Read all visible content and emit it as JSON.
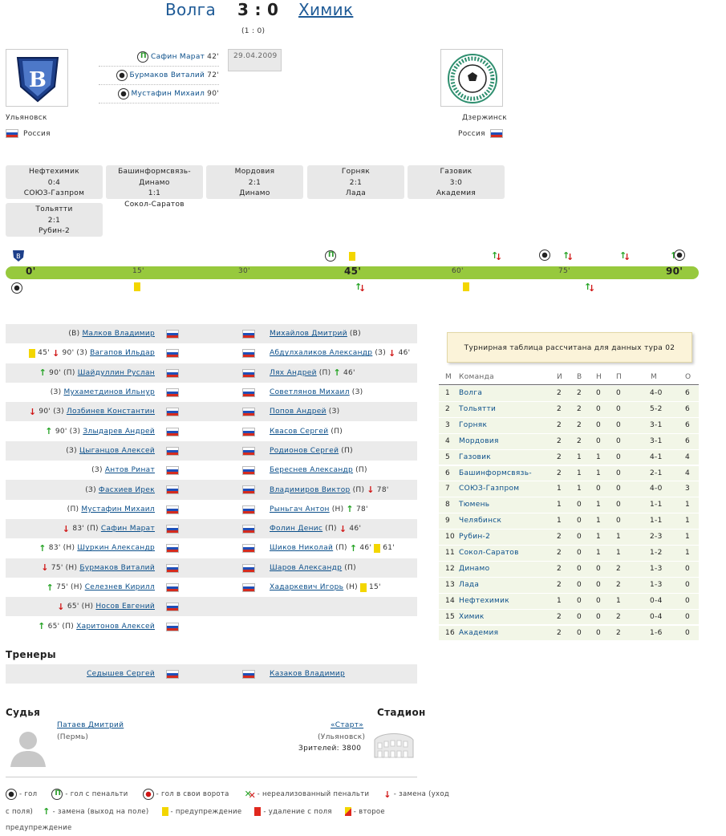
{
  "match": {
    "home_team": "Волга",
    "away_team": "Химик",
    "score": "3 : 0",
    "halftime": "(1 : 0)",
    "date": "29.04.2009",
    "home_city": "Ульяновск",
    "home_country": "Россия",
    "away_city": "Дзержинск",
    "away_country": "Россия"
  },
  "goals": [
    {
      "type": "penalty",
      "player": "Сафин Марат",
      "minute": "42'"
    },
    {
      "type": "goal",
      "player": "Бурмаков Виталий",
      "minute": "72'"
    },
    {
      "type": "goal",
      "player": "Мустафин Михаил",
      "minute": "90'"
    }
  ],
  "other_matches": [
    {
      "home": "Нефтехимик",
      "score": "0:4",
      "away": "СОЮЗ-Газпром"
    },
    {
      "home": "Башинформсвязь-Динамо",
      "score": "1:1",
      "away": "Сокол-Саратов"
    },
    {
      "home": "Мордовия",
      "score": "2:1",
      "away": "Динамо"
    },
    {
      "home": "Горняк",
      "score": "2:1",
      "away": "Лада"
    },
    {
      "home": "Газовик",
      "score": "3:0",
      "away": "Академия"
    },
    {
      "home": "Тольятти",
      "score": "2:1",
      "away": "Рубин-2"
    }
  ],
  "timeline": {
    "labels": [
      "0'",
      "15'",
      "30'",
      "45'",
      "60'",
      "75'",
      "90'"
    ]
  },
  "lineup_home": [
    {
      "pre": "(В)",
      "name": "Малков Владимир",
      "events": []
    },
    {
      "pre": "(З)",
      "name": "Вагапов Ильдар",
      "events": [
        "yc",
        "45'",
        "dn",
        "90'"
      ]
    },
    {
      "pre": "(П)",
      "name": "Шайдуллин Руслан",
      "events": [
        "up",
        "90'"
      ]
    },
    {
      "pre": "(З)",
      "name": "Мухаметдинов Ильнур",
      "events": []
    },
    {
      "pre": "(З)",
      "name": "Лозбинев Константин",
      "events": [
        "dn",
        "90'"
      ]
    },
    {
      "pre": "(З)",
      "name": "Злыдарев Андрей",
      "events": [
        "up",
        "90'"
      ]
    },
    {
      "pre": "(З)",
      "name": "Цыганцов Алексей",
      "events": []
    },
    {
      "pre": "(З)",
      "name": "Антов Ринат",
      "events": []
    },
    {
      "pre": "(З)",
      "name": "Фасхиев Ирек",
      "events": []
    },
    {
      "pre": "(П)",
      "name": "Мустафин Михаил",
      "events": []
    },
    {
      "pre": "(П)",
      "name": "Сафин Марат",
      "events": [
        "dn",
        "83'"
      ]
    },
    {
      "pre": "(Н)",
      "name": "Шуркин Александр",
      "events": [
        "up",
        "83'"
      ]
    },
    {
      "pre": "(Н)",
      "name": "Бурмаков Виталий",
      "events": [
        "dn",
        "75'"
      ]
    },
    {
      "pre": "(Н)",
      "name": "Селезнев Кирилл",
      "events": [
        "up",
        "75'"
      ]
    },
    {
      "pre": "(Н)",
      "name": "Носов Евгений",
      "events": [
        "dn",
        "65'"
      ]
    },
    {
      "pre": "(П)",
      "name": "Харитонов Алексей",
      "events": [
        "up",
        "65'"
      ]
    }
  ],
  "lineup_away": [
    {
      "name": "Михайлов Дмитрий",
      "post": "(В)",
      "events": []
    },
    {
      "name": "Абдулхаликов Александр",
      "post": "(З)",
      "events": [
        "dn",
        "46'"
      ]
    },
    {
      "name": "Лях Андрей",
      "post": "(П)",
      "events": [
        "up",
        "46'"
      ]
    },
    {
      "name": "Советлянов Михаил",
      "post": "(З)",
      "events": []
    },
    {
      "name": "Попов Андрей",
      "post": "(З)",
      "events": []
    },
    {
      "name": "Квасов Сергей",
      "post": "(П)",
      "events": []
    },
    {
      "name": "Родионов Сергей",
      "post": "(П)",
      "events": []
    },
    {
      "name": "Береснев Александр",
      "post": "(П)",
      "events": []
    },
    {
      "name": "Владимиров Виктор",
      "post": "(П)",
      "events": [
        "dn",
        "78'"
      ]
    },
    {
      "name": "Рыньгач Антон",
      "post": "(Н)",
      "events": [
        "up",
        "78'"
      ]
    },
    {
      "name": "Фолин Денис",
      "post": "(П)",
      "events": [
        "dn",
        "46'"
      ]
    },
    {
      "name": "Шиков Николай",
      "post": "(П)",
      "events": [
        "up",
        "46'",
        "yc",
        "61'"
      ]
    },
    {
      "name": "Шаров Александр",
      "post": "(П)",
      "events": []
    },
    {
      "name": "Хадаркевич Игорь",
      "post": "(Н)",
      "events": [
        "yc",
        "15'"
      ]
    }
  ],
  "coaches": {
    "title": "Тренеры",
    "home": "Седышев Сергей",
    "away": "Казаков Владимир"
  },
  "referee": {
    "title": "Судья",
    "name": "Патаев Дмитрий",
    "city": "(Пермь)"
  },
  "stadium": {
    "title": "Стадион",
    "name": "«Старт»",
    "city": "(Ульяновск)",
    "attendance": "Зрителей: 3800"
  },
  "standings": {
    "notice": "Турнирная таблица рассчитана для данных тура 02",
    "headers": [
      "М",
      "Команда",
      "И",
      "В",
      "Н",
      "П",
      "М",
      "О"
    ],
    "rows": [
      [
        "1",
        "Волга",
        "2",
        "2",
        "0",
        "0",
        "4-0",
        "6"
      ],
      [
        "2",
        "Тольятти",
        "2",
        "2",
        "0",
        "0",
        "5-2",
        "6"
      ],
      [
        "3",
        "Горняк",
        "2",
        "2",
        "0",
        "0",
        "3-1",
        "6"
      ],
      [
        "4",
        "Мордовия",
        "2",
        "2",
        "0",
        "0",
        "3-1",
        "6"
      ],
      [
        "5",
        "Газовик",
        "2",
        "1",
        "1",
        "0",
        "4-1",
        "4"
      ],
      [
        "6",
        "Башинформсвязь-",
        "2",
        "1",
        "1",
        "0",
        "2-1",
        "4"
      ],
      [
        "7",
        "СОЮЗ-Газпром",
        "1",
        "1",
        "0",
        "0",
        "4-0",
        "3"
      ],
      [
        "8",
        "Тюмень",
        "1",
        "0",
        "1",
        "0",
        "1-1",
        "1"
      ],
      [
        "9",
        "Челябинск",
        "1",
        "0",
        "1",
        "0",
        "1-1",
        "1"
      ],
      [
        "10",
        "Рубин-2",
        "2",
        "0",
        "1",
        "1",
        "2-3",
        "1"
      ],
      [
        "11",
        "Сокол-Саратов",
        "2",
        "0",
        "1",
        "1",
        "1-2",
        "1"
      ],
      [
        "12",
        "Динамо",
        "2",
        "0",
        "0",
        "2",
        "1-3",
        "0"
      ],
      [
        "13",
        "Лада",
        "2",
        "0",
        "0",
        "2",
        "1-3",
        "0"
      ],
      [
        "14",
        "Нефтехимик",
        "1",
        "0",
        "0",
        "1",
        "0-4",
        "0"
      ],
      [
        "15",
        "Химик",
        "2",
        "0",
        "0",
        "2",
        "0-4",
        "0"
      ],
      [
        "16",
        "Академия",
        "2",
        "0",
        "0",
        "2",
        "1-6",
        "0"
      ]
    ]
  },
  "legend": {
    "goal": "- гол",
    "penalty_goal": "- гол с пенальти",
    "own_goal": "- гол в свои ворота",
    "missed_penalty": "- нереализованный пенальти",
    "sub_out": "- замена (уход",
    "sub_out_cont": "с поля)",
    "sub_in": "- замена (выход на поле)",
    "yellow": "- предупреждение",
    "red": "- удаление с поля",
    "second_yellow": "- второе",
    "second_yellow_cont": "предупреждение"
  },
  "colors": {
    "link": "#0b4f8a",
    "timeline_bar": "#97c93d",
    "row_alt": "#ebebeb",
    "standings_row": "#f2f6e7"
  }
}
